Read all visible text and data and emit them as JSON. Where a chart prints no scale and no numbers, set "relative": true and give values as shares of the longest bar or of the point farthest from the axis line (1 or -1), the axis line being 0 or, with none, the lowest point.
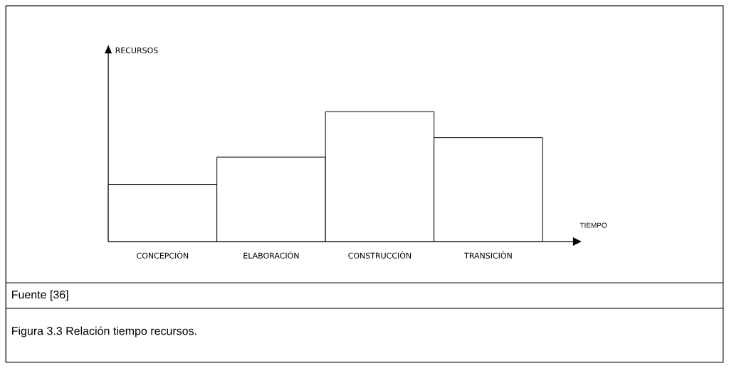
{
  "chart_data": {
    "type": "bar",
    "relative": true,
    "categories": [
      "CONCEPCIÒN",
      "ELABORACIÒN",
      "CONSTRUCCIÒN",
      "TRANSICIÒN"
    ],
    "values": [
      0.44,
      0.65,
      1,
      0.8
    ],
    "color": "#ffffff",
    "xlabel": "TIEMPO",
    "annotations": [
      "RECURSOS",
      "Fuente [36]",
      "Figura 3.3  Relación tiempo recursos."
    ]
  }
}
